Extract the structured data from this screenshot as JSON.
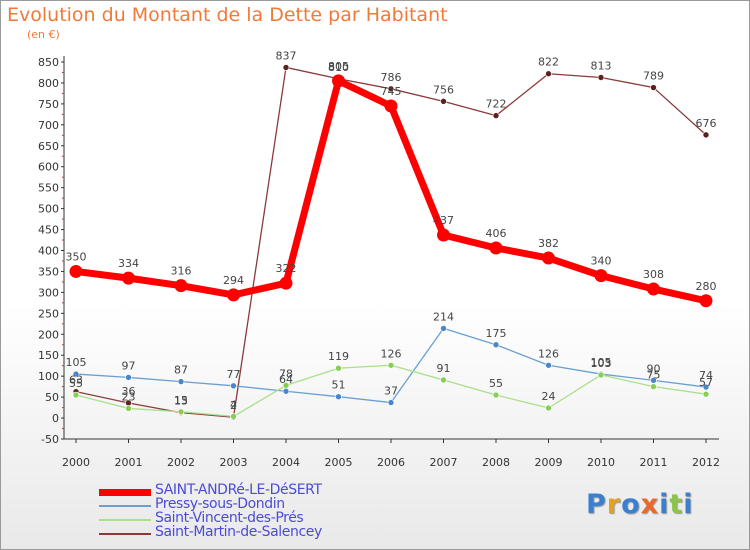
{
  "header": {
    "title": "Evolution du Montant de la Dette par Habitant",
    "unit": "(en €)"
  },
  "logo": {
    "text": "Proxiti",
    "letters": [
      {
        "ch": "P",
        "color": "#3b7fd0"
      },
      {
        "ch": "r",
        "color": "#e6a21f"
      },
      {
        "ch": "o",
        "color": "#3b7fd0"
      },
      {
        "ch": "x",
        "color": "#e66a2c"
      },
      {
        "ch": "i",
        "color": "#3b7fd0"
      },
      {
        "ch": "t",
        "color": "#8cc34a"
      },
      {
        "ch": "i",
        "color": "#3b7fd0"
      }
    ]
  },
  "chart_data": {
    "type": "line",
    "title": "Evolution du Montant de la Dette par Habitant",
    "ylabel": "(en €)",
    "xlabel": "",
    "x": [
      "2000",
      "2001",
      "2002",
      "2003",
      "2004",
      "2005",
      "2006",
      "2007",
      "2008",
      "2009",
      "2010",
      "2011",
      "2012"
    ],
    "ylim": [
      -50,
      850
    ],
    "yticks": [
      -50,
      0,
      50,
      100,
      150,
      200,
      250,
      300,
      350,
      400,
      450,
      500,
      550,
      600,
      650,
      700,
      750,
      800,
      850
    ],
    "grid": false,
    "legend": "bottom-left",
    "series": [
      {
        "name": "SAINT-ANDRé-LE-DéSERT",
        "color": "#ff0000",
        "marker": "#ff0000",
        "width": 7,
        "values": [
          350,
          334,
          316,
          294,
          322,
          805,
          745,
          437,
          406,
          382,
          340,
          308,
          280
        ],
        "labels": [
          "350",
          "334",
          "316",
          "294",
          "322",
          "805",
          "745",
          "437",
          "406",
          "382",
          "340",
          "308",
          "280"
        ]
      },
      {
        "name": "Pressy-sous-Dondin",
        "color": "#6a9fd2",
        "marker": "#4a86c8",
        "width": 1.3,
        "values": [
          105,
          97,
          87,
          77,
          64,
          51,
          37,
          214,
          175,
          126,
          105,
          90,
          74
        ],
        "labels": [
          "105",
          "97",
          "87",
          "77",
          "64",
          "51",
          "37",
          "214",
          "175",
          "126",
          "105",
          "90",
          "74"
        ]
      },
      {
        "name": "Saint-Vincent-des-Prés",
        "color": "#a9e08a",
        "marker": "#86cf52",
        "width": 1.3,
        "values": [
          55,
          23,
          15,
          4,
          78,
          119,
          126,
          91,
          55,
          24,
          103,
          75,
          57
        ],
        "labels": [
          "55",
          "23",
          "15",
          "4",
          "78",
          "119",
          "126",
          "91",
          "55",
          "24",
          "103",
          "75",
          "57"
        ]
      },
      {
        "name": "Saint-Martin-de-Salencey",
        "color": "#8b3a3a",
        "marker": "#5e1f1f",
        "width": 1.3,
        "values": [
          63,
          36,
          13,
          2,
          837,
          810,
          786,
          756,
          722,
          822,
          813,
          789,
          676
        ],
        "labels": [
          "63",
          "36",
          "13",
          "2",
          "837",
          "810",
          "786",
          "756",
          "722",
          "822",
          "813",
          "789",
          "676"
        ]
      }
    ]
  }
}
